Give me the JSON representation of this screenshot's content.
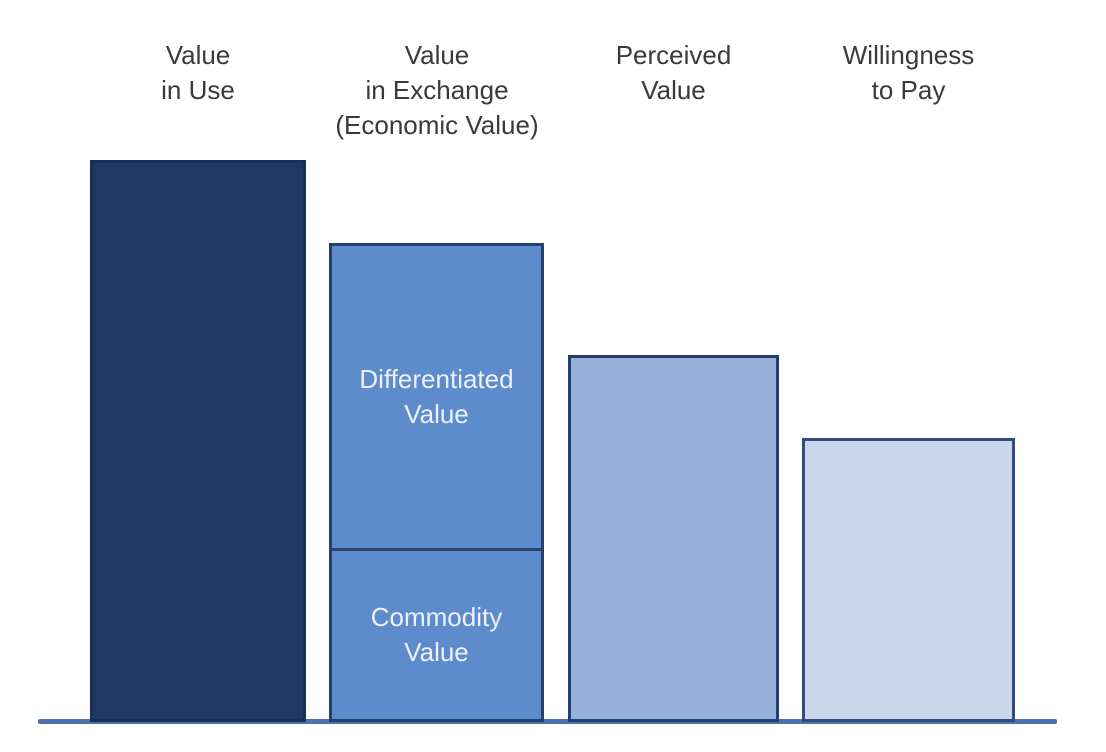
{
  "chart_data": {
    "type": "bar",
    "title": "",
    "xlabel": "",
    "ylabel": "",
    "categories": [
      "Value in Use",
      "Value in Exchange (Economic Value)",
      "Perceived Value",
      "Willingness to Pay"
    ],
    "values": [
      100,
      85,
      65,
      51
    ],
    "value_scale": "relative units, tallest bar (Value in Use) = 100; no numeric axis shown",
    "stacked_segments": [
      {
        "category": "Value in Exchange (Economic Value)",
        "segments": [
          {
            "label": "Differentiated Value",
            "value": 54
          },
          {
            "label": "Commodity Value",
            "value": 31
          }
        ]
      }
    ],
    "ylim": [
      0,
      105
    ],
    "grid": false,
    "legend": false,
    "axes_shown": "bottom baseline only, no ticks or tick labels"
  },
  "labels": {
    "col1": "Value\nin Use",
    "col2": "Value\nin Exchange\n(Economic Value)",
    "col3": "Perceived\nValue",
    "col4": "Willingness\nto Pay"
  },
  "bar_segments": {
    "differentiated": "Differentiated\nValue",
    "commodity": "Commodity\nValue"
  },
  "colors": {
    "bar_value_in_use_fill": "#1F3864",
    "bar_value_in_exchange_fill": "#5E8BCC",
    "bar_perceived_value_fill": "#96B1DC",
    "bar_willingness_to_pay_fill": "#CAD7EC",
    "bar_border": "#24406E",
    "segment_divider": "#2A4368",
    "axis_line": "#4C72AE",
    "category_label_text": "#3A3A3A",
    "segment_label_text": "#ECF2FB",
    "background": "#FFFFFF"
  }
}
